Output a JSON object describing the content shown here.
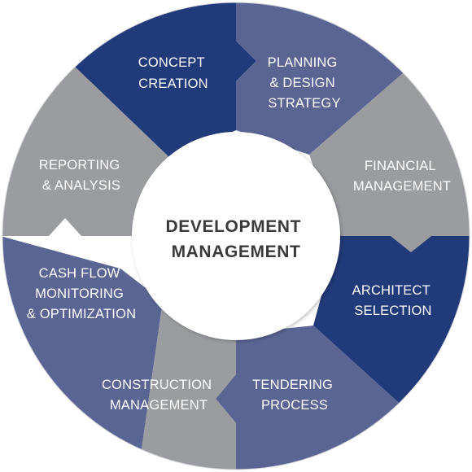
{
  "center": {
    "line1": "DEVELOPMENT",
    "line2": "MANAGEMENT"
  },
  "segments": [
    {
      "id": "concept-creation",
      "lines": [
        "CONCEPT",
        "CREATION"
      ],
      "color": "#213a79"
    },
    {
      "id": "planning-design-strategy",
      "lines": [
        "PLANNING",
        "& DESIGN",
        "STRATEGY"
      ],
      "color": "#5b6594"
    },
    {
      "id": "financial-management",
      "lines": [
        "FINANCIAL",
        "MANAGEMENT"
      ],
      "color": "#9b9ca0"
    },
    {
      "id": "architect-selection",
      "lines": [
        "ARCHITECT",
        "SELECTION"
      ],
      "color": "#213a79"
    },
    {
      "id": "tendering-process",
      "lines": [
        "TENDERING",
        "PROCESS"
      ],
      "color": "#5b6594"
    },
    {
      "id": "construction-management",
      "lines": [
        "CONSTRUCTION",
        "MANAGEMENT"
      ],
      "color": "#9b9ca0"
    },
    {
      "id": "cash-flow-monitoring",
      "lines": [
        "CASH FLOW",
        "MONITORING",
        "& OPTIMIZATION"
      ],
      "color": "#5b6594"
    },
    {
      "id": "reporting-analysis",
      "lines": [
        "REPORTING",
        "& ANALYSIS"
      ],
      "color": "#9b9ca0"
    }
  ]
}
